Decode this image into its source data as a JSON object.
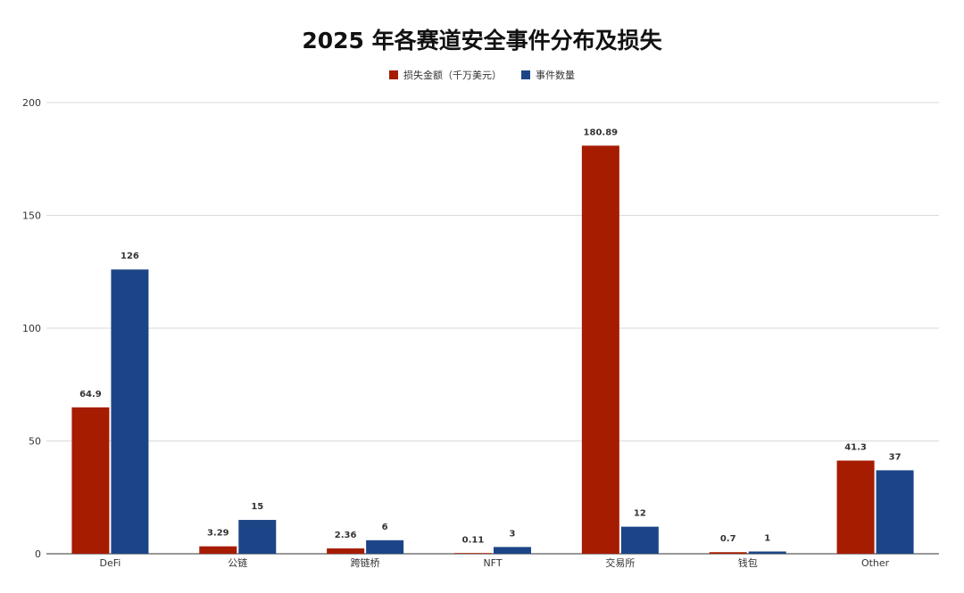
{
  "chart_data": {
    "type": "bar",
    "title": "2025 年各赛道安全事件分布及损失",
    "categories": [
      "DeFi",
      "公链",
      "跨链桥",
      "NFT",
      "交易所",
      "钱包",
      "Other"
    ],
    "series": [
      {
        "name": "损失金额（千万美元）",
        "color": "#a61c00",
        "values": [
          64.9,
          3.29,
          2.36,
          0.11,
          180.89,
          0.7,
          41.3
        ],
        "labels": [
          "64.9",
          "3.29",
          "2.36",
          "0.11",
          "180.89",
          "0.7",
          "41.3"
        ]
      },
      {
        "name": "事件数量",
        "color": "#1c4587",
        "values": [
          126,
          15,
          6,
          3,
          12,
          1,
          37
        ],
        "labels": [
          "126",
          "15",
          "6",
          "3",
          "12",
          "1",
          "37"
        ]
      }
    ],
    "ylim": [
      0,
      200
    ],
    "yticks": [
      0,
      50,
      100,
      150,
      200
    ],
    "ytick_labels": [
      "0",
      "50",
      "100",
      "150",
      "200"
    ],
    "grid": true,
    "legend_position": "top"
  }
}
